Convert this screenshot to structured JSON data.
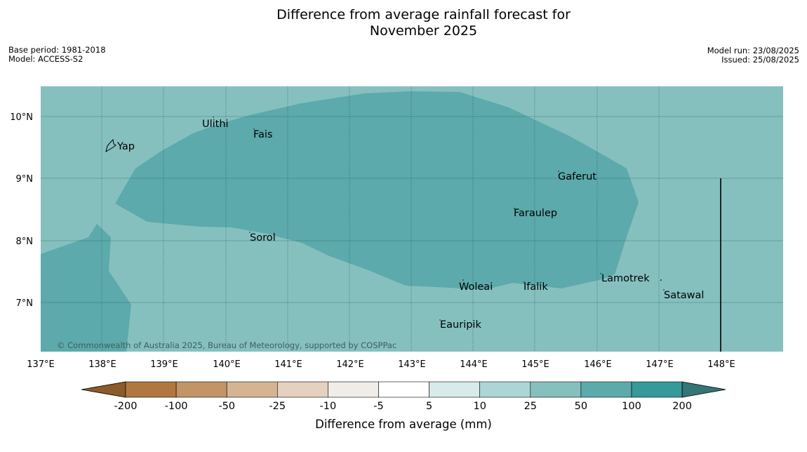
{
  "header": {
    "title_line1": "Difference from average rainfall forecast for",
    "title_line2": "November 2025",
    "base_period": "Base period: 1981-2018",
    "model": "Model: ACCESS-S2",
    "model_run": "Model run: 23/08/2025",
    "issued": "Issued: 25/08/2025"
  },
  "map": {
    "lon_labels": [
      "137°E",
      "138°E",
      "139°E",
      "140°E",
      "141°E",
      "142°E",
      "143°E",
      "144°E",
      "145°E",
      "146°E",
      "147°E",
      "148°E"
    ],
    "lat_labels": [
      "10°N",
      "9°N",
      "8°N",
      "7°N"
    ],
    "places": [
      {
        "name": "Ulithi"
      },
      {
        "name": "Fais"
      },
      {
        "name": "Yap"
      },
      {
        "name": "Gaferut"
      },
      {
        "name": "Faraulep"
      },
      {
        "name": "Sorol"
      },
      {
        "name": "Woleai"
      },
      {
        "name": "Ifalik"
      },
      {
        "name": "Lamotrek"
      },
      {
        "name": "Satawal"
      },
      {
        "name": "Eauripik"
      }
    ],
    "copyright": "© Commonwealth of Australia 2025, Bureau of Meteorology, supported by COSPPac",
    "colors": {
      "band_25_50": "#85c0bf",
      "band_50_100": "#5caaab"
    }
  },
  "legend": {
    "title": "Difference from average (mm)",
    "tick_labels": [
      "-200",
      "-100",
      "-50",
      "-25",
      "-10",
      "-5",
      "5",
      "10",
      "25",
      "50",
      "100",
      "200"
    ],
    "colors": [
      "#8c5a2b",
      "#b07840",
      "#c29466",
      "#d5b492",
      "#e4d1c0",
      "#f0ece7",
      "#ffffff",
      "#d6ebea",
      "#abd6d5",
      "#85c0bf",
      "#5caaab",
      "#36999a",
      "#357575"
    ]
  }
}
